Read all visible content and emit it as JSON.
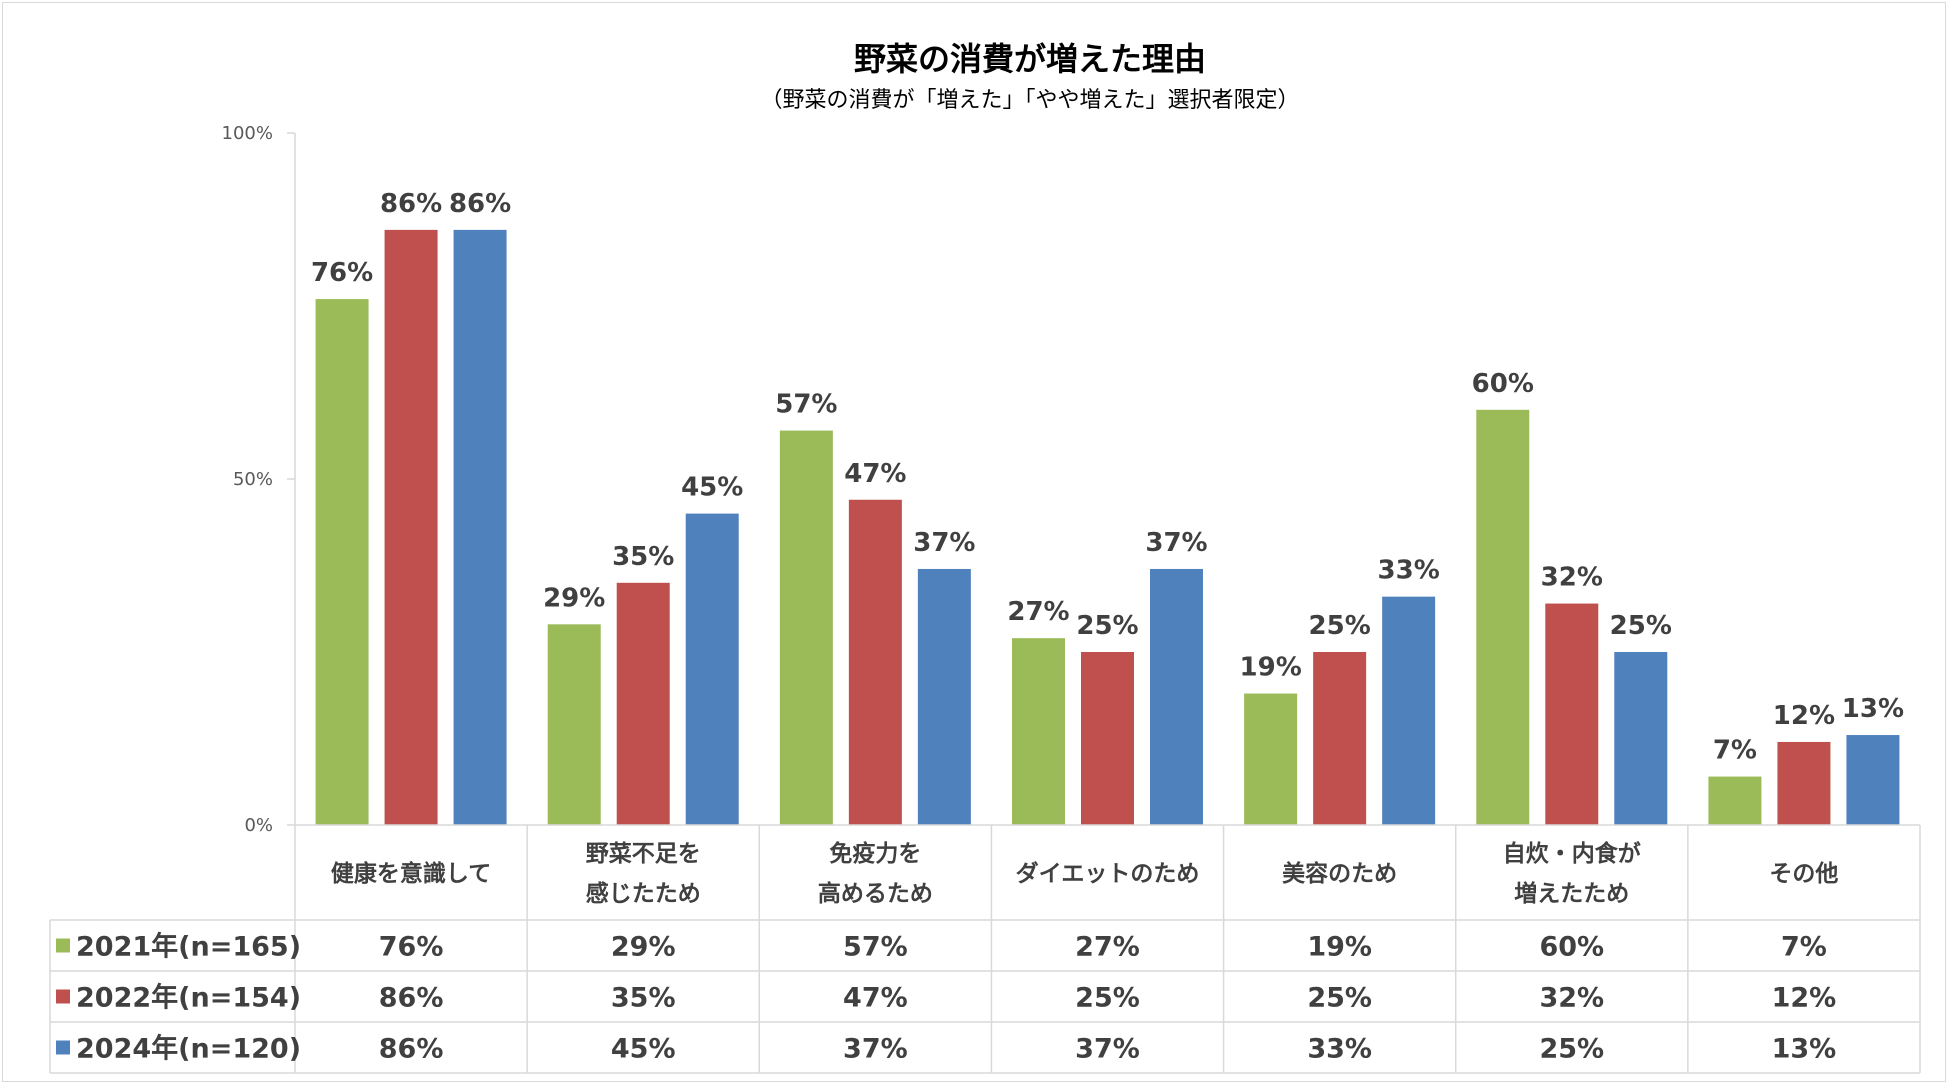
{
  "chart_data": {
    "type": "bar",
    "title": "野菜の消費が増えた理由",
    "subtitle": "（野菜の消費が「増えた」「やや増えた」選択者限定）",
    "categories": [
      [
        "健康を意識して"
      ],
      [
        "野菜不足を",
        "感じたため"
      ],
      [
        "免疫力を",
        "高めるため"
      ],
      [
        "ダイエットのため"
      ],
      [
        "美容のため"
      ],
      [
        "自炊・内食が",
        "増えたため"
      ],
      [
        "その他"
      ]
    ],
    "series": [
      {
        "name": "2021年(n=165)",
        "color": "#9BBB59",
        "values": [
          76,
          29,
          57,
          27,
          19,
          60,
          7
        ]
      },
      {
        "name": "2022年(n=154)",
        "color": "#C0504D",
        "values": [
          86,
          35,
          47,
          25,
          25,
          32,
          12
        ]
      },
      {
        "name": "2024年(n=120)",
        "color": "#4F81BD",
        "values": [
          86,
          45,
          37,
          37,
          33,
          25,
          13
        ]
      }
    ],
    "unit": "%",
    "ylim": [
      0,
      100
    ],
    "yticks": [
      "0%",
      "50%",
      "100%"
    ],
    "legend": "data-table",
    "grid": false
  }
}
